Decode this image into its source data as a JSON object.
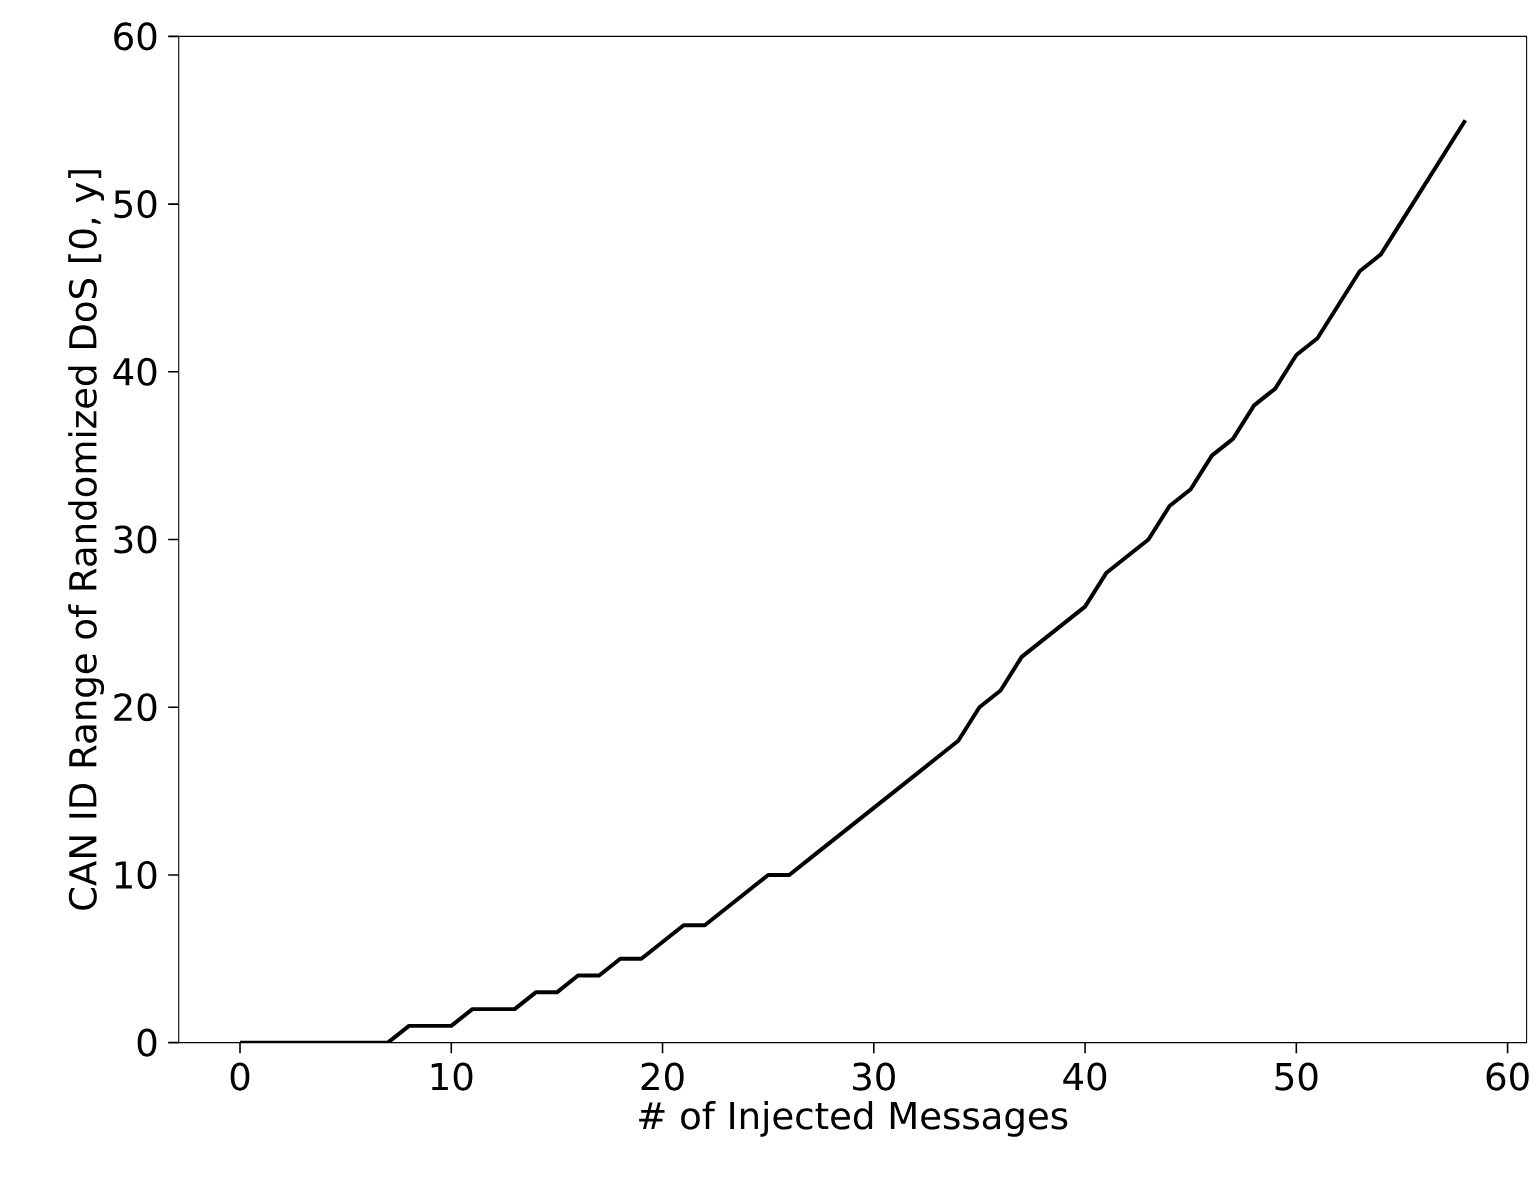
{
  "chart_data": {
    "type": "line",
    "xlabel": "# of Injected Messages",
    "ylabel": "CAN ID Range of Randomized DoS [0, y]",
    "x": [
      0,
      1,
      2,
      3,
      4,
      5,
      6,
      7,
      8,
      9,
      10,
      11,
      12,
      13,
      14,
      15,
      16,
      17,
      18,
      19,
      20,
      21,
      22,
      23,
      24,
      25,
      26,
      27,
      28,
      29,
      30,
      31,
      32,
      33,
      34,
      35,
      36,
      37,
      38,
      39,
      40,
      41,
      42,
      43,
      44,
      45,
      46,
      47,
      48,
      49,
      50,
      51,
      52,
      53,
      54,
      55,
      56,
      57,
      58
    ],
    "series": [
      {
        "color": "#000000",
        "values": [
          0,
          0,
          0,
          0,
          0,
          0,
          0,
          0,
          1,
          1,
          1,
          2,
          2,
          2,
          3,
          3,
          4,
          4,
          5,
          5,
          6,
          7,
          7,
          8,
          9,
          10,
          10,
          11,
          12,
          13,
          14,
          15,
          16,
          17,
          18,
          20,
          21,
          23,
          24,
          25,
          26,
          28,
          29,
          30,
          32,
          33,
          35,
          36,
          38,
          39,
          41,
          42,
          44,
          46,
          47,
          49,
          51,
          53,
          55
        ]
      }
    ],
    "xlim": [
      -2.9,
      60.9
    ],
    "ylim": [
      0,
      60
    ],
    "xticks": [
      0,
      10,
      20,
      30,
      40,
      50,
      60
    ],
    "yticks": [
      0,
      10,
      20,
      30,
      40,
      50,
      60
    ],
    "grid": false,
    "marker": "none",
    "line_style": "solid"
  }
}
